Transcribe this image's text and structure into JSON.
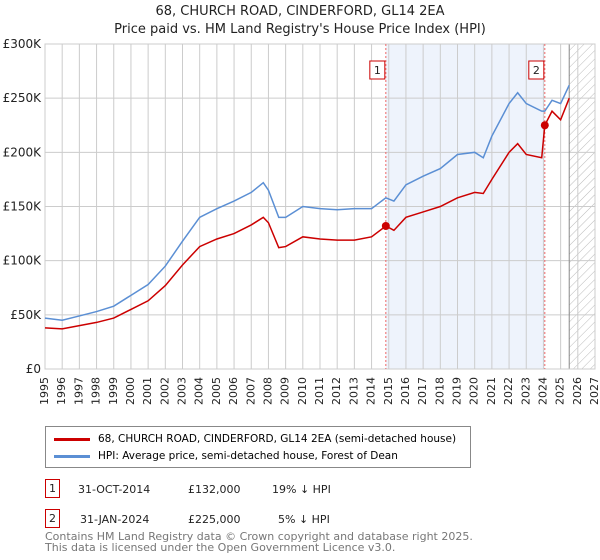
{
  "title": "68, CHURCH ROAD, CINDERFORD, GL14 2EA",
  "subtitle": "Price paid vs. HM Land Registry's House Price Index (HPI)",
  "chart_data": {
    "type": "line",
    "xlim": [
      1995,
      2027
    ],
    "ylim": [
      0,
      300000
    ],
    "yticks": [
      {
        "v": 0,
        "l": "£0"
      },
      {
        "v": 50000,
        "l": "£50K"
      },
      {
        "v": 100000,
        "l": "£100K"
      },
      {
        "v": 150000,
        "l": "£150K"
      },
      {
        "v": 200000,
        "l": "£200K"
      },
      {
        "v": 250000,
        "l": "£250K"
      },
      {
        "v": 300000,
        "l": "£300K"
      }
    ],
    "xticks": [
      "1995",
      "1996",
      "1997",
      "1998",
      "1999",
      "2000",
      "2001",
      "2002",
      "2003",
      "2004",
      "2005",
      "2006",
      "2007",
      "2008",
      "2009",
      "2010",
      "2011",
      "2012",
      "2013",
      "2014",
      "2015",
      "2016",
      "2017",
      "2018",
      "2019",
      "2020",
      "2021",
      "2022",
      "2023",
      "2024",
      "2025",
      "2026",
      "2027"
    ],
    "series": [
      {
        "name": "68, CHURCH ROAD, CINDERFORD, GL14 2EA (semi-detached house)",
        "color": "#cc0000",
        "x": [
          1995,
          1996,
          1997,
          1998,
          1999,
          2000,
          2001,
          2002,
          2003,
          2004,
          2005,
          2006,
          2007,
          2007.7,
          2008,
          2008.6,
          2009,
          2010,
          2011,
          2012,
          2013,
          2014,
          2014.83,
          2015.3,
          2016,
          2017,
          2018,
          2019,
          2020,
          2020.5,
          2021,
          2022,
          2022.5,
          2023,
          2023.9,
          2024.08,
          2024.5,
          2025,
          2025.5
        ],
        "y": [
          38000,
          37000,
          40000,
          43000,
          47000,
          55000,
          63000,
          77000,
          96000,
          113000,
          120000,
          125000,
          133000,
          140000,
          135000,
          112000,
          113000,
          122000,
          120000,
          119000,
          119000,
          122000,
          132000,
          128000,
          140000,
          145000,
          150000,
          158000,
          163000,
          162000,
          175000,
          200000,
          208000,
          198000,
          195000,
          225000,
          238000,
          230000,
          250000
        ]
      },
      {
        "name": "HPI: Average price, semi-detached house, Forest of Dean",
        "color": "#5b8fd4",
        "x": [
          1995,
          1996,
          1997,
          1998,
          1999,
          2000,
          2001,
          2002,
          2003,
          2004,
          2005,
          2006,
          2007,
          2007.7,
          2008,
          2008.6,
          2009,
          2010,
          2011,
          2012,
          2013,
          2014,
          2014.83,
          2015.3,
          2016,
          2017,
          2018,
          2019,
          2020,
          2020.5,
          2021,
          2022,
          2022.5,
          2023,
          2023.9,
          2024.08,
          2024.5,
          2025,
          2025.5
        ],
        "y": [
          47000,
          45000,
          49000,
          53000,
          58000,
          68000,
          78000,
          95000,
          118000,
          140000,
          148000,
          155000,
          163000,
          172000,
          165000,
          140000,
          140000,
          150000,
          148000,
          147000,
          148000,
          148000,
          158000,
          155000,
          170000,
          178000,
          185000,
          198000,
          200000,
          195000,
          215000,
          245000,
          255000,
          245000,
          238000,
          238000,
          248000,
          245000,
          262000
        ]
      }
    ],
    "sales": [
      {
        "label": "1",
        "x": 2014.83,
        "y": 132000
      },
      {
        "label": "2",
        "x": 2024.08,
        "y": 225000
      }
    ],
    "shade": [
      2014.83,
      2024.08
    ],
    "forecast_from": 2025.5
  },
  "legend": {
    "red": "68, CHURCH ROAD, CINDERFORD, GL14 2EA (semi-detached house)",
    "blue": "HPI: Average price, semi-detached house, Forest of Dean"
  },
  "table": [
    {
      "n": "1",
      "date": "31-OCT-2014",
      "price": "£132,000",
      "hpi": "19% ↓ HPI"
    },
    {
      "n": "2",
      "date": "31-JAN-2024",
      "price": "£225,000",
      "hpi": "5% ↓ HPI"
    }
  ],
  "footer": [
    "Contains HM Land Registry data © Crown copyright and database right 2025.",
    "This data is licensed under the Open Government Licence v3.0."
  ]
}
